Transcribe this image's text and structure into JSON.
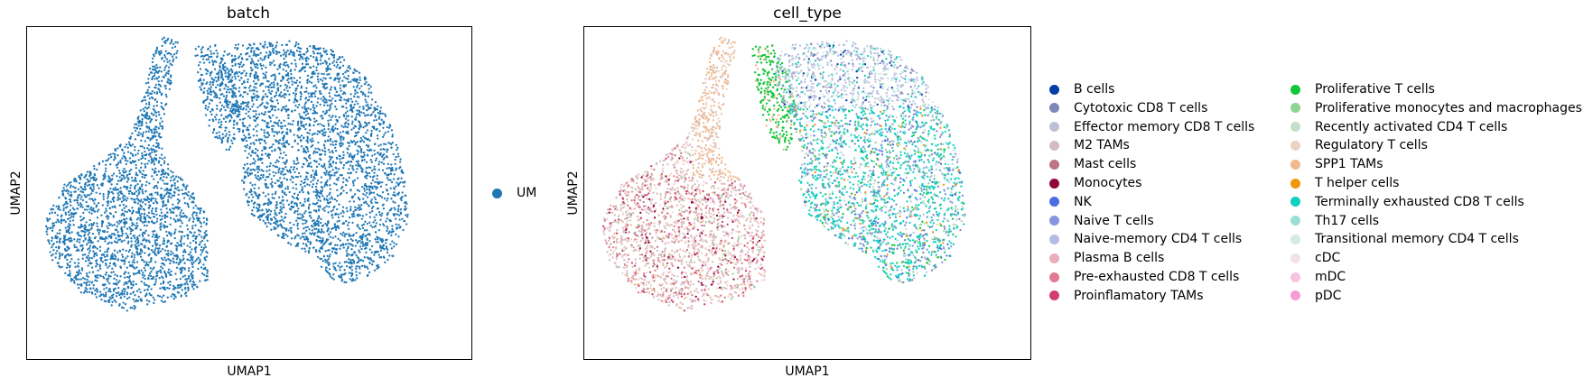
{
  "chart_data": [
    {
      "type": "scatter",
      "title": "batch",
      "xlabel": "UMAP1",
      "ylabel": "UMAP2",
      "grid": false,
      "legend_position": "right",
      "series": [
        {
          "name": "UM",
          "color": "#1f77b4"
        }
      ]
    },
    {
      "type": "scatter",
      "title": "cell_type",
      "xlabel": "UMAP1",
      "ylabel": "UMAP2",
      "grid": false,
      "legend_position": "right",
      "series": [
        {
          "name": "B cells",
          "color": "#023fa5"
        },
        {
          "name": "Cytotoxic CD8 T cells",
          "color": "#7d87b9"
        },
        {
          "name": "Effector memory CD8 T cells",
          "color": "#bec1d4"
        },
        {
          "name": "M2 TAMs",
          "color": "#d6bcc0"
        },
        {
          "name": "Mast cells",
          "color": "#bb7784"
        },
        {
          "name": "Monocytes",
          "color": "#8e063b"
        },
        {
          "name": "NK",
          "color": "#4a6fe3"
        },
        {
          "name": "Naive T cells",
          "color": "#8595e1"
        },
        {
          "name": "Naive-memory CD4 T cells",
          "color": "#b5bbe3"
        },
        {
          "name": "Plasma B cells",
          "color": "#e6afb9"
        },
        {
          "name": "Pre-exhausted CD8 T cells",
          "color": "#e07b91"
        },
        {
          "name": "Proinflamatory TAMs",
          "color": "#d33f6a"
        },
        {
          "name": "Proliferative T cells",
          "color": "#11c638"
        },
        {
          "name": "Proliferative monocytes and macrophages",
          "color": "#8dd593"
        },
        {
          "name": "Recently activated CD4 T cells",
          "color": "#c6dec7"
        },
        {
          "name": "Regulatory T cells",
          "color": "#ead3c6"
        },
        {
          "name": "SPP1 TAMs",
          "color": "#f0b98d"
        },
        {
          "name": "T helper cells",
          "color": "#ef9708"
        },
        {
          "name": "Terminally exhausted CD8 T cells",
          "color": "#0fcfc0"
        },
        {
          "name": "Th17 cells",
          "color": "#9cded6"
        },
        {
          "name": "Transitional memory CD4 T cells",
          "color": "#d5eae7"
        },
        {
          "name": "cDC",
          "color": "#f3e1eb"
        },
        {
          "name": "mDC",
          "color": "#f6c4e1"
        },
        {
          "name": "pDC",
          "color": "#f79cd4"
        }
      ]
    }
  ]
}
